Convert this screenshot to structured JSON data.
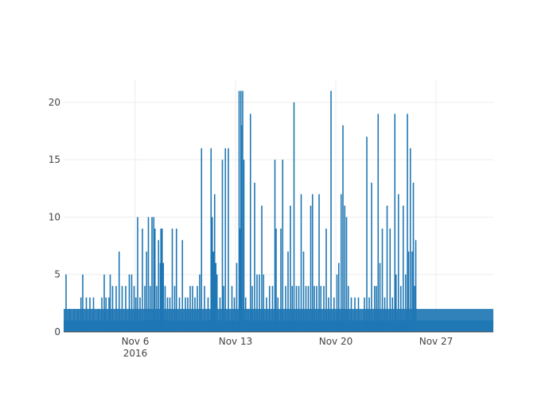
{
  "chart_data": {
    "type": "bar",
    "title": "",
    "xlabel": "",
    "ylabel": "",
    "bar_color": "#1f77b4",
    "grid": true,
    "ylim": [
      0,
      22
    ],
    "xlim": [
      "2016-11-01",
      "2016-12-01"
    ],
    "yticks": [
      0,
      5,
      10,
      15,
      20
    ],
    "xticks": [
      {
        "date": "2016-11-06",
        "label": "Nov 6",
        "sublabel": "2016"
      },
      {
        "date": "2016-11-13",
        "label": "Nov 13",
        "sublabel": ""
      },
      {
        "date": "2016-11-20",
        "label": "Nov 20",
        "sublabel": ""
      },
      {
        "date": "2016-11-27",
        "label": "Nov 27",
        "sublabel": ""
      }
    ],
    "baseline": {
      "start": "2016-11-01",
      "end": "2016-12-01",
      "value": 1
    },
    "secondary": {
      "start": "2016-11-01",
      "end": "2016-12-01",
      "value": 2
    },
    "bars": [
      [
        "2016-11-01T04:00",
        5
      ],
      [
        "2016-11-01T10:00",
        2
      ],
      [
        "2016-11-01T18:00",
        2
      ],
      [
        "2016-11-02T00:00",
        2
      ],
      [
        "2016-11-02T05:00",
        3
      ],
      [
        "2016-11-02T08:00",
        5
      ],
      [
        "2016-11-02T14:00",
        3
      ],
      [
        "2016-11-02T20:00",
        3
      ],
      [
        "2016-11-03T02:00",
        3
      ],
      [
        "2016-11-03T10:00",
        2
      ],
      [
        "2016-11-03T16:00",
        3
      ],
      [
        "2016-11-03T20:00",
        5
      ],
      [
        "2016-11-03T23:00",
        3
      ],
      [
        "2016-11-04T04:00",
        3
      ],
      [
        "2016-11-04T06:00",
        5
      ],
      [
        "2016-11-04T10:00",
        4
      ],
      [
        "2016-11-04T16:00",
        4
      ],
      [
        "2016-11-04T21:00",
        7
      ],
      [
        "2016-11-05T02:00",
        4
      ],
      [
        "2016-11-05T08:00",
        4
      ],
      [
        "2016-11-05T14:00",
        5
      ],
      [
        "2016-11-05T18:00",
        5
      ],
      [
        "2016-11-05T22:00",
        4
      ],
      [
        "2016-11-06T01:00",
        3
      ],
      [
        "2016-11-06T04:00",
        10
      ],
      [
        "2016-11-06T08:00",
        3
      ],
      [
        "2016-11-06T12:00",
        9
      ],
      [
        "2016-11-06T16:00",
        4
      ],
      [
        "2016-11-06T19:00",
        7
      ],
      [
        "2016-11-06T22:00",
        10
      ],
      [
        "2016-11-07T01:00",
        4
      ],
      [
        "2016-11-07T04:00",
        10
      ],
      [
        "2016-11-07T07:00",
        10
      ],
      [
        "2016-11-07T09:00",
        9
      ],
      [
        "2016-11-07T12:00",
        4
      ],
      [
        "2016-11-07T15:00",
        8
      ],
      [
        "2016-11-07T18:00",
        6
      ],
      [
        "2016-11-07T19:00",
        9
      ],
      [
        "2016-11-07T21:00",
        9
      ],
      [
        "2016-11-07T23:00",
        6
      ],
      [
        "2016-11-08T02:00",
        4
      ],
      [
        "2016-11-08T06:00",
        3
      ],
      [
        "2016-11-08T10:00",
        3
      ],
      [
        "2016-11-08T14:00",
        9
      ],
      [
        "2016-11-08T18:00",
        4
      ],
      [
        "2016-11-08T21:00",
        9
      ],
      [
        "2016-11-09T02:00",
        3
      ],
      [
        "2016-11-09T07:00",
        8
      ],
      [
        "2016-11-09T12:00",
        3
      ],
      [
        "2016-11-09T16:00",
        3
      ],
      [
        "2016-11-09T20:00",
        4
      ],
      [
        "2016-11-10T00:00",
        4
      ],
      [
        "2016-11-10T04:00",
        3
      ],
      [
        "2016-11-10T08:00",
        4
      ],
      [
        "2016-11-10T12:00",
        5
      ],
      [
        "2016-11-10T15:00",
        16
      ],
      [
        "2016-11-10T20:00",
        4
      ],
      [
        "2016-11-11T02:00",
        3
      ],
      [
        "2016-11-11T07:00",
        16
      ],
      [
        "2016-11-11T09:00",
        10
      ],
      [
        "2016-11-11T11:00",
        7
      ],
      [
        "2016-11-11T13:00",
        12
      ],
      [
        "2016-11-11T15:00",
        6
      ],
      [
        "2016-11-11T17:00",
        5
      ],
      [
        "2016-11-11T22:00",
        3
      ],
      [
        "2016-11-12T02:00",
        15
      ],
      [
        "2016-11-12T04:00",
        4
      ],
      [
        "2016-11-12T07:00",
        16
      ],
      [
        "2016-11-12T12:00",
        16
      ],
      [
        "2016-11-12T18:00",
        4
      ],
      [
        "2016-11-12T22:00",
        3
      ],
      [
        "2016-11-13T02:00",
        6
      ],
      [
        "2016-11-13T06:00",
        21
      ],
      [
        "2016-11-13T07:00",
        9
      ],
      [
        "2016-11-13T09:00",
        21
      ],
      [
        "2016-11-13T10:00",
        18
      ],
      [
        "2016-11-13T12:00",
        21
      ],
      [
        "2016-11-13T14:00",
        15
      ],
      [
        "2016-11-13T17:00",
        3
      ],
      [
        "2016-11-13T21:00",
        2
      ],
      [
        "2016-11-14T01:00",
        19
      ],
      [
        "2016-11-14T04:00",
        4
      ],
      [
        "2016-11-14T08:00",
        13
      ],
      [
        "2016-11-14T12:00",
        5
      ],
      [
        "2016-11-14T16:00",
        5
      ],
      [
        "2016-11-14T20:00",
        11
      ],
      [
        "2016-11-14T23:00",
        5
      ],
      [
        "2016-11-15T04:00",
        3
      ],
      [
        "2016-11-15T09:00",
        4
      ],
      [
        "2016-11-15T14:00",
        4
      ],
      [
        "2016-11-15T18:00",
        15
      ],
      [
        "2016-11-15T20:00",
        9
      ],
      [
        "2016-11-15T23:00",
        3
      ],
      [
        "2016-11-16T04:00",
        9
      ],
      [
        "2016-11-16T07:00",
        15
      ],
      [
        "2016-11-16T12:00",
        4
      ],
      [
        "2016-11-16T16:00",
        7
      ],
      [
        "2016-11-16T20:00",
        11
      ],
      [
        "2016-11-16T23:00",
        4
      ],
      [
        "2016-11-17T02:00",
        20
      ],
      [
        "2016-11-17T06:00",
        4
      ],
      [
        "2016-11-17T10:00",
        4
      ],
      [
        "2016-11-17T14:00",
        12
      ],
      [
        "2016-11-17T18:00",
        7
      ],
      [
        "2016-11-17T22:00",
        4
      ],
      [
        "2016-11-18T02:00",
        4
      ],
      [
        "2016-11-18T06:00",
        11
      ],
      [
        "2016-11-18T09:00",
        12
      ],
      [
        "2016-11-18T12:00",
        4
      ],
      [
        "2016-11-18T16:00",
        4
      ],
      [
        "2016-11-18T20:00",
        12
      ],
      [
        "2016-11-18T23:00",
        4
      ],
      [
        "2016-11-19T04:00",
        4
      ],
      [
        "2016-11-19T08:00",
        9
      ],
      [
        "2016-11-19T12:00",
        3
      ],
      [
        "2016-11-19T16:00",
        21
      ],
      [
        "2016-11-19T21:00",
        3
      ],
      [
        "2016-11-20T02:00",
        5
      ],
      [
        "2016-11-20T05:00",
        6
      ],
      [
        "2016-11-20T09:00",
        12
      ],
      [
        "2016-11-20T12:00",
        18
      ],
      [
        "2016-11-20T15:00",
        11
      ],
      [
        "2016-11-20T18:00",
        10
      ],
      [
        "2016-11-20T21:00",
        4
      ],
      [
        "2016-11-21T02:00",
        3
      ],
      [
        "2016-11-21T08:00",
        3
      ],
      [
        "2016-11-21T14:00",
        3
      ],
      [
        "2016-11-22T00:00",
        3
      ],
      [
        "2016-11-22T04:00",
        17
      ],
      [
        "2016-11-22T08:00",
        3
      ],
      [
        "2016-11-22T12:00",
        13
      ],
      [
        "2016-11-22T17:00",
        4
      ],
      [
        "2016-11-22T20:00",
        4
      ],
      [
        "2016-11-22T23:00",
        19
      ],
      [
        "2016-11-23T02:00",
        6
      ],
      [
        "2016-11-23T06:00",
        9
      ],
      [
        "2016-11-23T10:00",
        3
      ],
      [
        "2016-11-23T14:00",
        11
      ],
      [
        "2016-11-23T19:00",
        9
      ],
      [
        "2016-11-23T23:00",
        3
      ],
      [
        "2016-11-24T03:00",
        19
      ],
      [
        "2016-11-24T05:00",
        5
      ],
      [
        "2016-11-24T09:00",
        12
      ],
      [
        "2016-11-24T13:00",
        4
      ],
      [
        "2016-11-24T17:00",
        11
      ],
      [
        "2016-11-24T21:00",
        5
      ],
      [
        "2016-11-25T00:00",
        19
      ],
      [
        "2016-11-25T02:00",
        7
      ],
      [
        "2016-11-25T05:00",
        16
      ],
      [
        "2016-11-25T08:00",
        7
      ],
      [
        "2016-11-25T10:00",
        13
      ],
      [
        "2016-11-25T12:00",
        4
      ],
      [
        "2016-11-25T14:00",
        8
      ]
    ]
  }
}
